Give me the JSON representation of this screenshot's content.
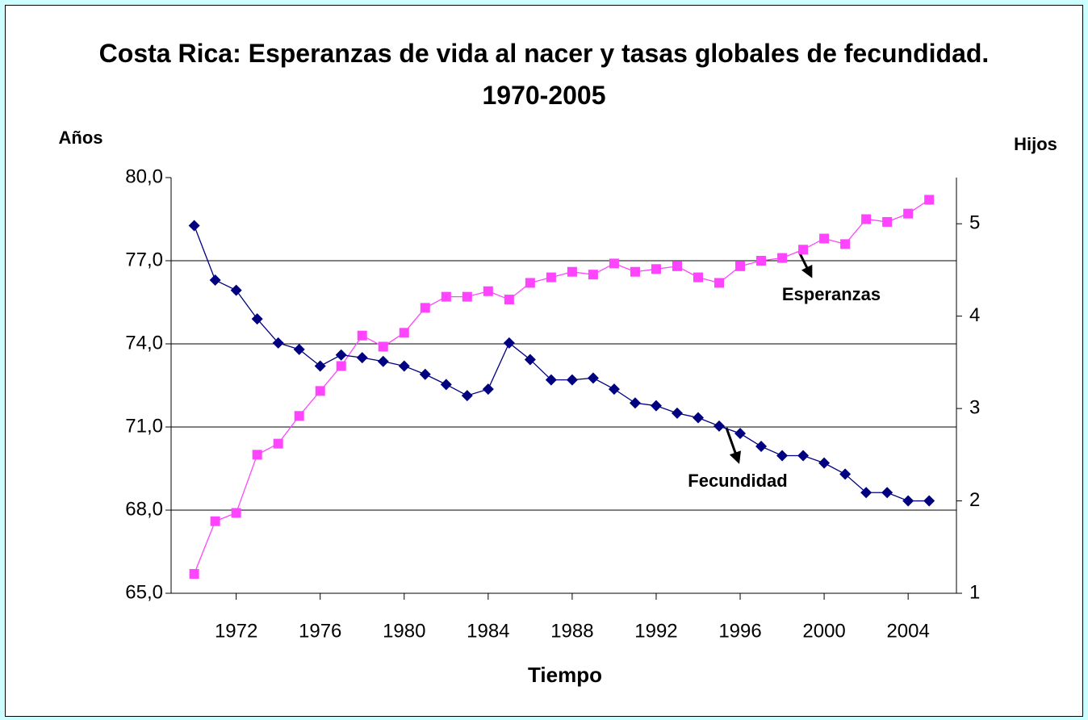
{
  "chart_data": {
    "type": "line",
    "title": "Costa Rica: Esperanzas de vida al nacer y tasas globales de fecundidad. 1970-2005",
    "y_label": "Años",
    "y2_label": "Hijos",
    "x_label": "Tiempo",
    "x": [
      1970,
      1971,
      1972,
      1973,
      1974,
      1975,
      1976,
      1977,
      1978,
      1979,
      1980,
      1981,
      1982,
      1983,
      1984,
      1985,
      1986,
      1987,
      1988,
      1989,
      1990,
      1991,
      1992,
      1993,
      1994,
      1995,
      1996,
      1997,
      1998,
      1999,
      2000,
      2001,
      2002,
      2003,
      2004,
      2005
    ],
    "xlim": [
      1968.9,
      2006.3
    ],
    "xticks": [
      1972,
      1976,
      1980,
      1984,
      1988,
      1992,
      1996,
      2000,
      2004
    ],
    "ylim": [
      65,
      80
    ],
    "yticks": [
      {
        "value": 65,
        "label": "65,0"
      },
      {
        "value": 68,
        "label": "68,0"
      },
      {
        "value": 71,
        "label": "71,0"
      },
      {
        "value": 74,
        "label": "74,0"
      },
      {
        "value": 77,
        "label": "77,0"
      },
      {
        "value": 80,
        "label": "80,0"
      }
    ],
    "y2lim": [
      1,
      5.5
    ],
    "y2ticks": [
      1,
      2,
      3,
      4,
      5
    ],
    "grid": true,
    "series": [
      {
        "name": "Esperanzas",
        "color": "#ff44ff",
        "marker": "square",
        "values": [
          65.7,
          67.6,
          67.9,
          70.0,
          70.4,
          71.4,
          72.3,
          73.2,
          74.3,
          73.9,
          74.4,
          75.3,
          75.7,
          75.7,
          75.9,
          75.6,
          76.2,
          76.4,
          76.6,
          76.5,
          76.9,
          76.6,
          76.7,
          76.8,
          76.4,
          76.2,
          76.8,
          77.0,
          77.1,
          77.4,
          77.8,
          77.6,
          78.5,
          78.4,
          78.7,
          79.2
        ]
      },
      {
        "name": "Fecundidad",
        "color": "#000080",
        "marker": "diamond",
        "axis": "y2",
        "values": [
          4.98,
          4.39,
          4.28,
          3.97,
          3.71,
          3.64,
          3.46,
          3.58,
          3.55,
          3.51,
          3.46,
          3.37,
          3.26,
          3.14,
          3.21,
          3.71,
          3.53,
          3.31,
          3.31,
          3.33,
          3.21,
          3.06,
          3.03,
          2.95,
          2.9,
          2.81,
          2.73,
          2.59,
          2.49,
          2.49,
          2.41,
          2.29,
          2.09,
          2.09,
          2.0,
          2.0
        ]
      }
    ]
  }
}
